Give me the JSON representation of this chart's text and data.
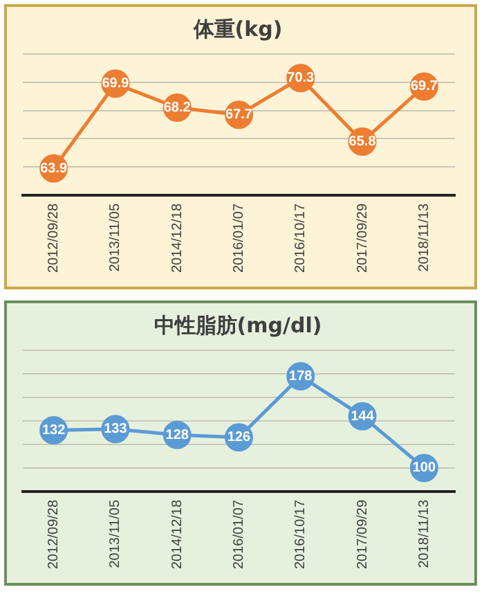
{
  "chart_data": [
    {
      "type": "line",
      "title": "体重(kg)",
      "categories": [
        "2012/09/28",
        "2013/11/05",
        "2014/12/18",
        "2016/01/07",
        "2016/10/17",
        "2017/09/29",
        "2018/11/13"
      ],
      "series": [
        {
          "color": "#ed7d31",
          "values": [
            63.9,
            69.9,
            68.2,
            67.7,
            70.3,
            65.8,
            69.7
          ]
        }
      ],
      "data_labels": true,
      "marker": "circle",
      "line_style": "solid",
      "grid": "y",
      "tick_labels": "x",
      "legend": false
    },
    {
      "type": "line",
      "title": "中性脂肪(mg/dl)",
      "categories": [
        "2012/09/28",
        "2013/11/05",
        "2014/12/18",
        "2016/01/07",
        "2016/10/17",
        "2017/09/29",
        "2018/11/13"
      ],
      "series": [
        {
          "color": "#5b9bd5",
          "values": [
            132,
            133,
            128,
            126,
            178,
            144,
            100
          ]
        }
      ],
      "data_labels": true,
      "marker": "circle",
      "line_style": "solid",
      "grid": "y",
      "tick_labels": "x",
      "legend": false
    }
  ]
}
